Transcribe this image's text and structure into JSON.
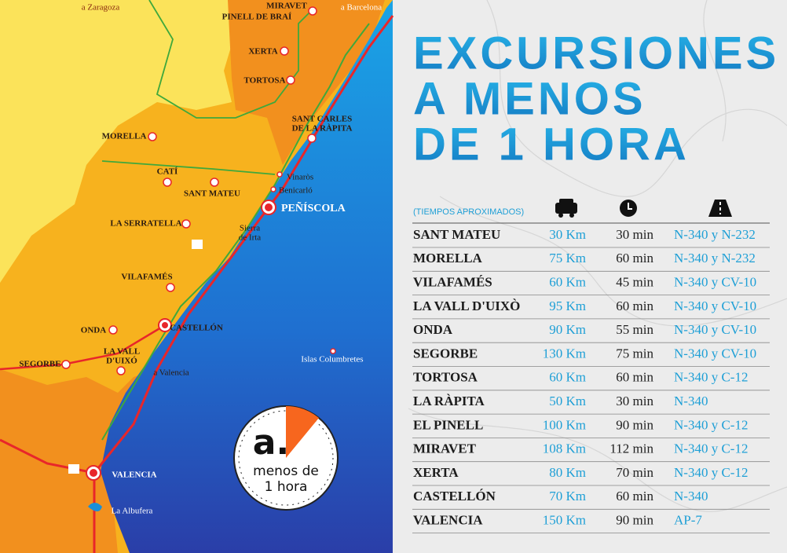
{
  "title": [
    "EXCURSIONES",
    "A MENOS",
    "DE 1 HORA"
  ],
  "table": {
    "note": "(TIEMPOS APROXIMADOS)",
    "rows": [
      [
        "SANT MATEU",
        "30 Km",
        "30 min",
        "N-340 y N-232"
      ],
      [
        "MORELLA",
        "75 Km",
        "60 min",
        "N-340 y N-232"
      ],
      [
        "VILAFAMÉS",
        "60 Km",
        "45 min",
        "N-340 y CV-10"
      ],
      [
        "LA VALL D'UIXÒ",
        "95 Km",
        "60 min",
        "N-340 y CV-10"
      ],
      [
        "ONDA",
        "90 Km",
        "55 min",
        "N-340 y CV-10"
      ],
      [
        "SEGORBE",
        "130 Km",
        "75 min",
        "N-340 y CV-10"
      ],
      [
        "TORTOSA",
        "60 Km",
        "60 min",
        "N-340 y C-12"
      ],
      [
        "LA RÀPITA",
        "50 Km",
        "30 min",
        "N-340"
      ],
      [
        "EL PINELL",
        "100 Km",
        "90 min",
        "N-340 y C-12"
      ],
      [
        "MIRAVET",
        "108 Km",
        "112 min",
        "N-340 y C-12"
      ],
      [
        "XERTA",
        "80 Km",
        "70 min",
        "N-340 y C-12"
      ],
      [
        "CASTELLÓN",
        "70 Km",
        "60 min",
        "N-340"
      ],
      [
        "VALENCIA",
        "150 Km",
        "90 min",
        "AP-7"
      ]
    ]
  },
  "map": {
    "labels": [
      "a Zaragoza",
      "MIRAVET",
      "a Barcelona",
      "PINELL DE BRAÍ",
      "XERTA",
      "TORTOSA",
      "SANT CARLES",
      "DE LA RÀPITA",
      "MORELLA",
      "Vinaròs",
      "CATÍ",
      "Benicarló",
      "SANT MATEU",
      "PEÑÍSCOLA",
      "LA SERRATELLA",
      "Sierra",
      "de Irta",
      "VILAFAMÉS",
      "ONDA",
      "CASTELLÓN",
      "LA VALL",
      "D'UIXÓ",
      "SEGORBE",
      "a Valencia",
      "Islas Columbretes",
      "VALENCIA",
      "La Albufera"
    ]
  },
  "logo": {
    "mark": "a.",
    "lines": [
      "menos de",
      "1 hora"
    ]
  }
}
